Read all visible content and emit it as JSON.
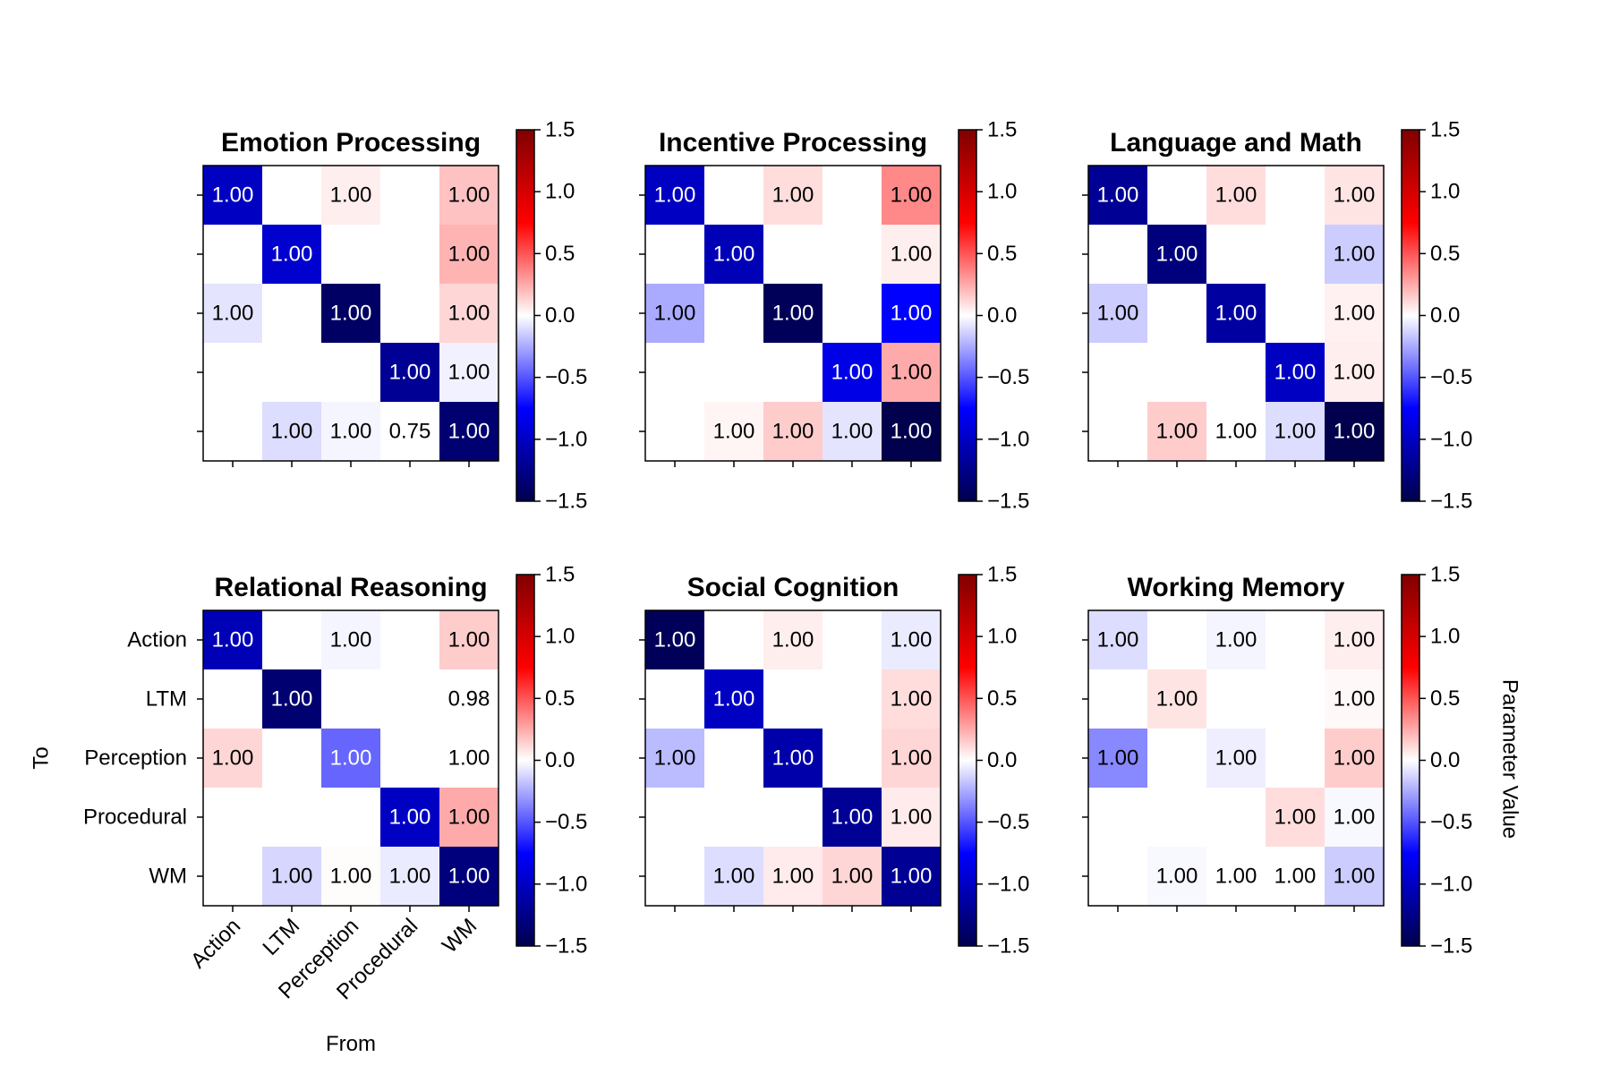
{
  "chart_data": {
    "type": "heatmap",
    "layout": {
      "rows": 2,
      "cols": 3
    },
    "nodes": [
      "Action",
      "LTM",
      "Perception",
      "Procedural",
      "WM"
    ],
    "xlabel": "From",
    "ylabel": "To",
    "colorbar": {
      "label": "Parameter Value",
      "range": [
        -1.5,
        1.5
      ],
      "ticks": [
        "1.5",
        "1.0",
        "0.5",
        "0.0",
        "−0.5",
        "−1.0",
        "−1.5"
      ],
      "tick_values": [
        1.5,
        1.0,
        0.5,
        0.0,
        -0.5,
        -1.0,
        -1.5
      ],
      "colormap": "seismic"
    },
    "panels": [
      {
        "title": "Emotion Processing",
        "values": [
          [
            -1.0,
            null,
            0.05,
            null,
            0.18
          ],
          [
            null,
            -0.95,
            null,
            null,
            0.22
          ],
          [
            -0.08,
            null,
            -1.4,
            null,
            0.12
          ],
          [
            null,
            null,
            null,
            -1.2,
            -0.04
          ],
          [
            null,
            -0.1,
            -0.03,
            0.0,
            -1.35
          ]
        ],
        "labels": [
          [
            "1.00",
            "",
            "1.00",
            "",
            "1.00"
          ],
          [
            "",
            "1.00",
            "",
            "",
            "1.00"
          ],
          [
            "1.00",
            "",
            "1.00",
            "",
            "1.00"
          ],
          [
            "",
            "",
            "",
            "1.00",
            "1.00"
          ],
          [
            "",
            "1.00",
            "1.00",
            "0.75",
            "1.00"
          ]
        ]
      },
      {
        "title": "Incentive Processing",
        "values": [
          [
            -1.0,
            null,
            0.1,
            null,
            0.35
          ],
          [
            null,
            -1.05,
            null,
            null,
            0.05
          ],
          [
            -0.25,
            null,
            -1.45,
            null,
            -0.75
          ],
          [
            null,
            null,
            null,
            -0.85,
            0.25
          ],
          [
            null,
            0.03,
            0.15,
            -0.08,
            -1.5
          ]
        ],
        "labels": [
          [
            "1.00",
            "",
            "1.00",
            "",
            "1.00"
          ],
          [
            "",
            "1.00",
            "",
            "",
            "1.00"
          ],
          [
            "1.00",
            "",
            "1.00",
            "",
            "1.00"
          ],
          [
            "",
            "",
            "",
            "1.00",
            "1.00"
          ],
          [
            "",
            "1.00",
            "1.00",
            "1.00",
            "1.00"
          ]
        ]
      },
      {
        "title": "Language and Math",
        "values": [
          [
            -1.2,
            null,
            0.1,
            null,
            0.08
          ],
          [
            null,
            -1.3,
            null,
            null,
            -0.15
          ],
          [
            -0.15,
            null,
            -1.15,
            null,
            0.04
          ],
          [
            null,
            null,
            null,
            -1.0,
            0.05
          ],
          [
            null,
            0.15,
            0.0,
            -0.1,
            -1.5
          ]
        ],
        "labels": [
          [
            "1.00",
            "",
            "1.00",
            "",
            "1.00"
          ],
          [
            "",
            "1.00",
            "",
            "",
            "1.00"
          ],
          [
            "1.00",
            "",
            "1.00",
            "",
            "1.00"
          ],
          [
            "",
            "",
            "",
            "1.00",
            "1.00"
          ],
          [
            "",
            "1.00",
            "1.00",
            "1.00",
            "1.00"
          ]
        ]
      },
      {
        "title": "Relational Reasoning",
        "values": [
          [
            -1.05,
            null,
            -0.03,
            null,
            0.15
          ],
          [
            null,
            -1.35,
            null,
            null,
            0.0
          ],
          [
            0.12,
            null,
            -0.45,
            null,
            0.0
          ],
          [
            null,
            null,
            null,
            -1.0,
            0.25
          ],
          [
            null,
            -0.12,
            0.01,
            -0.06,
            -1.3
          ]
        ],
        "labels": [
          [
            "1.00",
            "",
            "1.00",
            "",
            "1.00"
          ],
          [
            "",
            "1.00",
            "",
            "",
            "0.98"
          ],
          [
            "1.00",
            "",
            "1.00",
            "",
            "1.00"
          ],
          [
            "",
            "",
            "",
            "1.00",
            "1.00"
          ],
          [
            "",
            "1.00",
            "1.00",
            "1.00",
            "1.00"
          ]
        ]
      },
      {
        "title": "Social Cognition",
        "values": [
          [
            -1.45,
            null,
            0.05,
            null,
            -0.06
          ],
          [
            null,
            -1.0,
            null,
            null,
            0.1
          ],
          [
            -0.2,
            null,
            -1.1,
            null,
            0.12
          ],
          [
            null,
            null,
            null,
            -1.2,
            0.06
          ],
          [
            null,
            -0.1,
            0.06,
            0.12,
            -1.2
          ]
        ],
        "labels": [
          [
            "1.00",
            "",
            "1.00",
            "",
            "1.00"
          ],
          [
            "",
            "1.00",
            "",
            "",
            "1.00"
          ],
          [
            "1.00",
            "",
            "1.00",
            "",
            "1.00"
          ],
          [
            "",
            "",
            "",
            "1.00",
            "1.00"
          ],
          [
            "",
            "1.00",
            "1.00",
            "1.00",
            "1.00"
          ]
        ]
      },
      {
        "title": "Working Memory",
        "values": [
          [
            -0.1,
            null,
            -0.03,
            null,
            0.05
          ],
          [
            null,
            0.08,
            null,
            null,
            0.02
          ],
          [
            -0.35,
            null,
            -0.05,
            null,
            0.15
          ],
          [
            null,
            null,
            null,
            0.1,
            -0.02
          ],
          [
            null,
            -0.02,
            0.0,
            0.0,
            -0.15
          ]
        ],
        "labels": [
          [
            "1.00",
            "",
            "1.00",
            "",
            "1.00"
          ],
          [
            "",
            "1.00",
            "",
            "",
            "1.00"
          ],
          [
            "1.00",
            "",
            "1.00",
            "",
            "1.00"
          ],
          [
            "",
            "",
            "",
            "1.00",
            "1.00"
          ],
          [
            "",
            "1.00",
            "1.00",
            "1.00",
            "1.00"
          ]
        ]
      }
    ]
  }
}
